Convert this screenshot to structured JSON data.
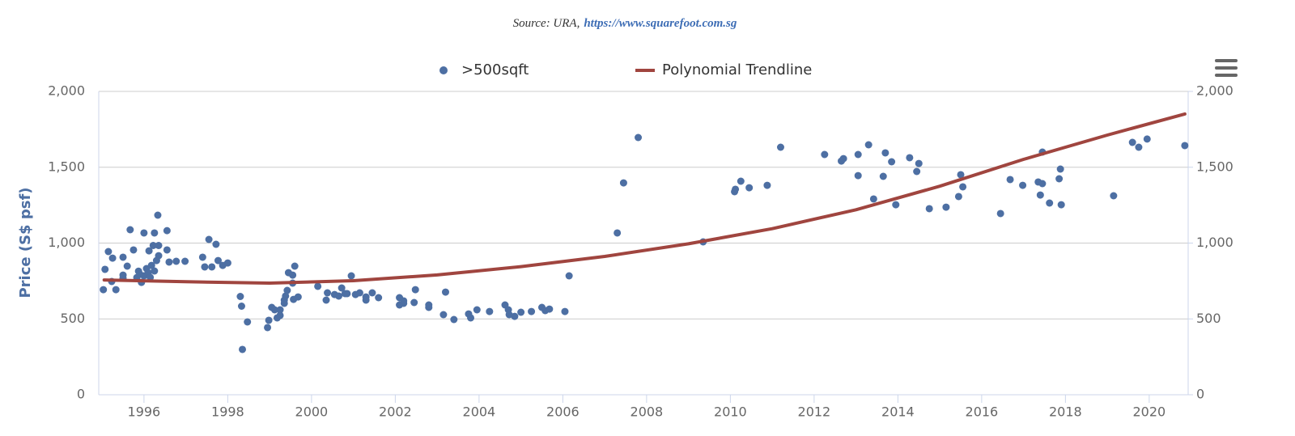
{
  "chart_data": {
    "type": "scatter",
    "source_label": "Source: URA,",
    "source_link": "https://www.squarefoot.com.sg",
    "y_axis_label": "Price (S$ psf)",
    "xlim": [
      1994.92,
      2020.93
    ],
    "xticks": [
      1996,
      1998,
      2000,
      2002,
      2004,
      2006,
      2008,
      2010,
      2012,
      2014,
      2016,
      2018,
      2020
    ],
    "ylim": [
      0,
      2000
    ],
    "yticks": [
      0,
      500,
      {
        "value": 1000,
        "label": "1,000"
      },
      {
        "value": 1500,
        "label": "1,500"
      },
      {
        "value": 2000,
        "label": "2,000"
      }
    ],
    "y2lim": [
      0,
      2000
    ],
    "y2ticks": [
      0,
      500,
      {
        "value": 1000,
        "label": "1,000"
      },
      {
        "value": 1500,
        "label": "1,500"
      },
      {
        "value": 2000,
        "label": "2,000"
      }
    ],
    "grid": true,
    "legend": "top",
    "series": [
      {
        "name": ">500sqft",
        "type": "scatter",
        "color": "#4d6fa3",
        "x": [
          1995.07,
          1995.03,
          1995.15,
          1995.25,
          1995.23,
          1995.33,
          1995.5,
          1995.5,
          1995.5,
          1995.6,
          1995.67,
          1995.75,
          1995.83,
          1995.87,
          1995.9,
          1995.94,
          1996.0,
          1996.0,
          1996.06,
          1996.1,
          1996.12,
          1996.15,
          1996.18,
          1996.22,
          1996.25,
          1996.25,
          1996.3,
          1996.33,
          1996.35,
          1996.35,
          1996.55,
          1996.55,
          1996.6,
          1996.77,
          1996.98,
          1997.4,
          1997.45,
          1997.55,
          1997.62,
          1997.72,
          1997.77,
          1997.88,
          1998.0,
          1998.3,
          1998.33,
          1998.35,
          1998.47,
          1998.95,
          1998.98,
          1999.05,
          1999.12,
          1999.18,
          1999.25,
          1999.25,
          1999.35,
          1999.35,
          1999.38,
          1999.42,
          1999.45,
          1999.55,
          1999.55,
          1999.6,
          1999.57,
          1999.68,
          2000.15,
          2000.35,
          2000.38,
          2000.55,
          2000.65,
          2000.72,
          2000.8,
          2000.85,
          2000.95,
          2001.05,
          2001.15,
          2001.3,
          2001.3,
          2001.45,
          2001.6,
          2002.1,
          2002.1,
          2002.2,
          2002.2,
          2002.45,
          2002.48,
          2002.8,
          2002.8,
          2003.15,
          2003.2,
          2003.4,
          2003.75,
          2003.8,
          2003.95,
          2004.25,
          2004.62,
          2004.7,
          2004.72,
          2004.85,
          2005.0,
          2005.25,
          2005.5,
          2005.58,
          2005.68,
          2006.05,
          2006.15,
          2007.3,
          2007.45,
          2007.8,
          2009.35,
          2010.1,
          2010.12,
          2010.25,
          2010.45,
          2010.88,
          2011.2,
          2012.25,
          2012.65,
          2012.7,
          2013.05,
          2013.05,
          2013.3,
          2013.42,
          2013.65,
          2013.7,
          2013.85,
          2013.95,
          2014.28,
          2014.45,
          2014.5,
          2014.75,
          2015.15,
          2015.45,
          2015.5,
          2015.55,
          2016.45,
          2016.68,
          2016.98,
          2017.35,
          2017.45,
          2017.4,
          2017.45,
          2017.62,
          2017.85,
          2017.88,
          2017.9,
          2019.15,
          2019.6,
          2019.75,
          2019.95,
          2020.85
        ],
        "values": [
          827,
          693,
          944,
          901,
          747,
          693,
          907,
          789,
          768,
          848,
          1088,
          955,
          773,
          815,
          795,
          741,
          1067,
          784,
          832,
          805,
          949,
          774,
          853,
          984,
          1067,
          816,
          885,
          1184,
          917,
          984,
          1082,
          955,
          875,
          880,
          880,
          907,
          843,
          1024,
          843,
          992,
          885,
          853,
          869,
          648,
          584,
          299,
          480,
          443,
          491,
          576,
          560,
          507,
          523,
          560,
          603,
          624,
          651,
          688,
          805,
          789,
          736,
          848,
          629,
          645,
          715,
          624,
          672,
          661,
          651,
          704,
          667,
          667,
          784,
          661,
          672,
          645,
          624,
          672,
          640,
          640,
          592,
          603,
          619,
          608,
          693,
          576,
          592,
          528,
          677,
          496,
          533,
          507,
          560,
          549,
          592,
          560,
          528,
          517,
          544,
          549,
          576,
          555,
          565,
          549,
          784,
          1067,
          1397,
          1696,
          1008,
          1339,
          1355,
          1408,
          1365,
          1381,
          1632,
          1584,
          1541,
          1557,
          1584,
          1445,
          1648,
          1291,
          1440,
          1595,
          1536,
          1253,
          1563,
          1472,
          1525,
          1227,
          1237,
          1307,
          1451,
          1371,
          1195,
          1419,
          1381,
          1403,
          1392,
          1317,
          1600,
          1264,
          1424,
          1488,
          1253,
          1312,
          1664,
          1632,
          1686,
          1643
        ]
      },
      {
        "name": "Polynomial Trendline",
        "type": "line",
        "color": "#a0453f",
        "x": [
          1995.05,
          1997,
          1999,
          2001,
          2003,
          2005,
          2007,
          2009,
          2011,
          2013,
          2015,
          2017,
          2019,
          2020.85
        ],
        "values": [
          757,
          745,
          736,
          752,
          790,
          845,
          912,
          995,
          1095,
          1220,
          1375,
          1552,
          1712,
          1851
        ]
      }
    ]
  }
}
